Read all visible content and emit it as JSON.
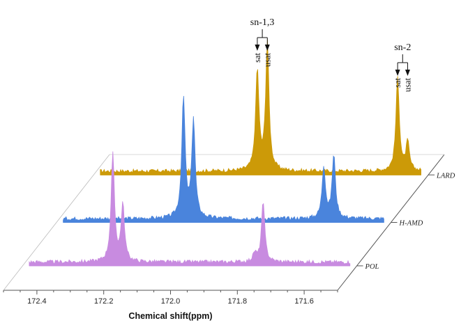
{
  "chart_data": {
    "type": "line",
    "title": "",
    "xlabel": "Chemical shift(ppm)",
    "ylabel": "",
    "xlim": [
      172.5,
      171.5
    ],
    "x_reversed": true,
    "x_ticks": [
      "172.4",
      "172.2",
      "172.0",
      "171.8",
      "171.6"
    ],
    "grid": false,
    "series": [
      {
        "name": "POL",
        "color": "#c88be0",
        "peaks": [
          {
            "x": 172.23,
            "height": 0.64,
            "width": 0.006
          },
          {
            "x": 172.2,
            "height": 0.34,
            "width": 0.006
          },
          {
            "x": 171.78,
            "height": 0.36,
            "width": 0.006
          },
          {
            "x": 171.805,
            "height": 0.05,
            "width": 0.006
          }
        ]
      },
      {
        "name": "H-AMD",
        "color": "#4a84dc",
        "peaks": [
          {
            "x": 172.12,
            "height": 0.72,
            "width": 0.006
          },
          {
            "x": 172.09,
            "height": 0.59,
            "width": 0.006
          },
          {
            "x": 171.7,
            "height": 0.31,
            "width": 0.006
          },
          {
            "x": 171.67,
            "height": 0.38,
            "width": 0.006
          }
        ]
      },
      {
        "name": "LARD",
        "color": "#cc9a08",
        "peaks": [
          {
            "x": 172.01,
            "height": 0.6,
            "width": 0.006
          },
          {
            "x": 171.98,
            "height": 0.77,
            "width": 0.006
          },
          {
            "x": 171.59,
            "height": 0.56,
            "width": 0.006
          },
          {
            "x": 171.56,
            "height": 0.17,
            "width": 0.006
          }
        ]
      }
    ],
    "annotations": [
      {
        "group": "sn-1,3",
        "labels": [
          "sat",
          "usat"
        ],
        "x": [
          172.01,
          171.98
        ]
      },
      {
        "group": "sn-2",
        "labels": [
          "sat",
          "usat"
        ],
        "x": [
          171.59,
          171.56
        ]
      }
    ]
  }
}
